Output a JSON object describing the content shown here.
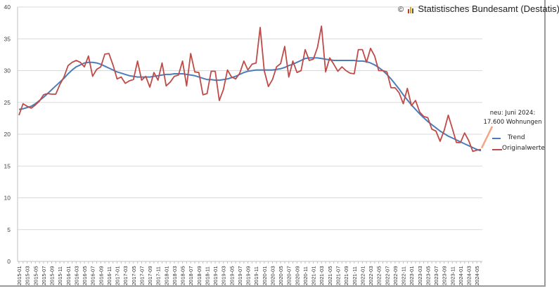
{
  "chart_data": {
    "type": "line",
    "title": "",
    "credit": "Statistisches Bundesamt (Destatis), 2024",
    "credit_symbol": "©",
    "xlabel": "",
    "ylabel": "",
    "ylim": [
      0,
      40
    ],
    "yticks": [
      0,
      5,
      10,
      15,
      20,
      25,
      30,
      35,
      40
    ],
    "grid": true,
    "legend_position": "right",
    "annotation": [
      "neu: Juni 2024:",
      "17.600 Wohnungen"
    ],
    "start": "2015-01",
    "x_tick_every_months": 2,
    "series": [
      {
        "name": "Trend",
        "color": "#4a7ebb",
        "values": [
          23.9,
          24.0,
          24.2,
          24.4,
          24.8,
          25.3,
          25.8,
          26.4,
          27.0,
          27.6,
          28.2,
          28.8,
          29.5,
          30.1,
          30.6,
          30.9,
          31.2,
          31.3,
          31.3,
          31.2,
          31.0,
          30.7,
          30.4,
          30.1,
          29.8,
          29.6,
          29.4,
          29.2,
          29.1,
          29.0,
          29.0,
          29.0,
          29.0,
          29.1,
          29.2,
          29.3,
          29.4,
          29.4,
          29.5,
          29.5,
          29.5,
          29.4,
          29.3,
          29.2,
          29.0,
          28.8,
          28.6,
          28.6,
          28.5,
          28.5,
          28.6,
          28.7,
          28.9,
          29.1,
          29.4,
          29.7,
          29.9,
          30.0,
          30.1,
          30.1,
          30.1,
          30.1,
          30.1,
          30.2,
          30.3,
          30.5,
          30.8,
          31.0,
          31.3,
          31.6,
          31.9,
          32.0,
          32.0,
          32.0,
          31.9,
          31.8,
          31.7,
          31.6,
          31.6,
          31.6,
          31.6,
          31.6,
          31.6,
          31.5,
          31.5,
          31.4,
          31.2,
          30.9,
          30.5,
          30.0,
          29.4,
          28.7,
          27.9,
          27.1,
          26.2,
          25.4,
          24.6,
          23.9,
          23.2,
          22.6,
          22.0,
          21.5,
          21.0,
          20.5,
          20.1,
          19.7,
          19.4,
          19.1,
          18.8,
          18.5,
          18.2,
          17.9,
          17.6,
          17.4
        ]
      },
      {
        "name": "Originalwerte",
        "color": "#be4b48",
        "values": [
          23.0,
          24.8,
          24.4,
          24.1,
          24.6,
          25.2,
          26.2,
          26.4,
          26.3,
          26.3,
          27.8,
          29.0,
          30.8,
          31.3,
          31.6,
          31.3,
          30.6,
          32.3,
          29.1,
          30.2,
          30.6,
          32.6,
          32.7,
          30.9,
          28.7,
          29.0,
          28.0,
          28.4,
          28.6,
          31.5,
          28.5,
          29.1,
          27.4,
          29.7,
          28.5,
          31.2,
          27.6,
          28.2,
          29.1,
          29.3,
          31.5,
          27.6,
          32.7,
          29.8,
          29.7,
          26.2,
          26.4,
          29.9,
          29.9,
          25.3,
          27.0,
          30.1,
          29.0,
          28.7,
          29.6,
          31.5,
          30.1,
          31.0,
          31.2,
          36.8,
          30.0,
          27.5,
          28.6,
          30.6,
          31.1,
          33.8,
          29.0,
          31.5,
          29.7,
          30.0,
          33.3,
          31.6,
          31.8,
          33.6,
          37.0,
          29.8,
          32.0,
          31.0,
          29.9,
          30.6,
          30.0,
          29.6,
          29.5,
          33.3,
          33.3,
          31.3,
          33.5,
          32.3,
          30.0,
          30.0,
          29.8,
          27.3,
          27.3,
          26.5,
          24.8,
          27.2,
          24.5,
          25.3,
          23.5,
          22.8,
          22.6,
          20.8,
          20.5,
          18.9,
          20.6,
          23.0,
          20.9,
          18.7,
          18.7,
          20.2,
          19.0,
          17.3,
          17.5,
          17.6
        ]
      }
    ],
    "annotation_arrow_color": "#f4a582"
  }
}
